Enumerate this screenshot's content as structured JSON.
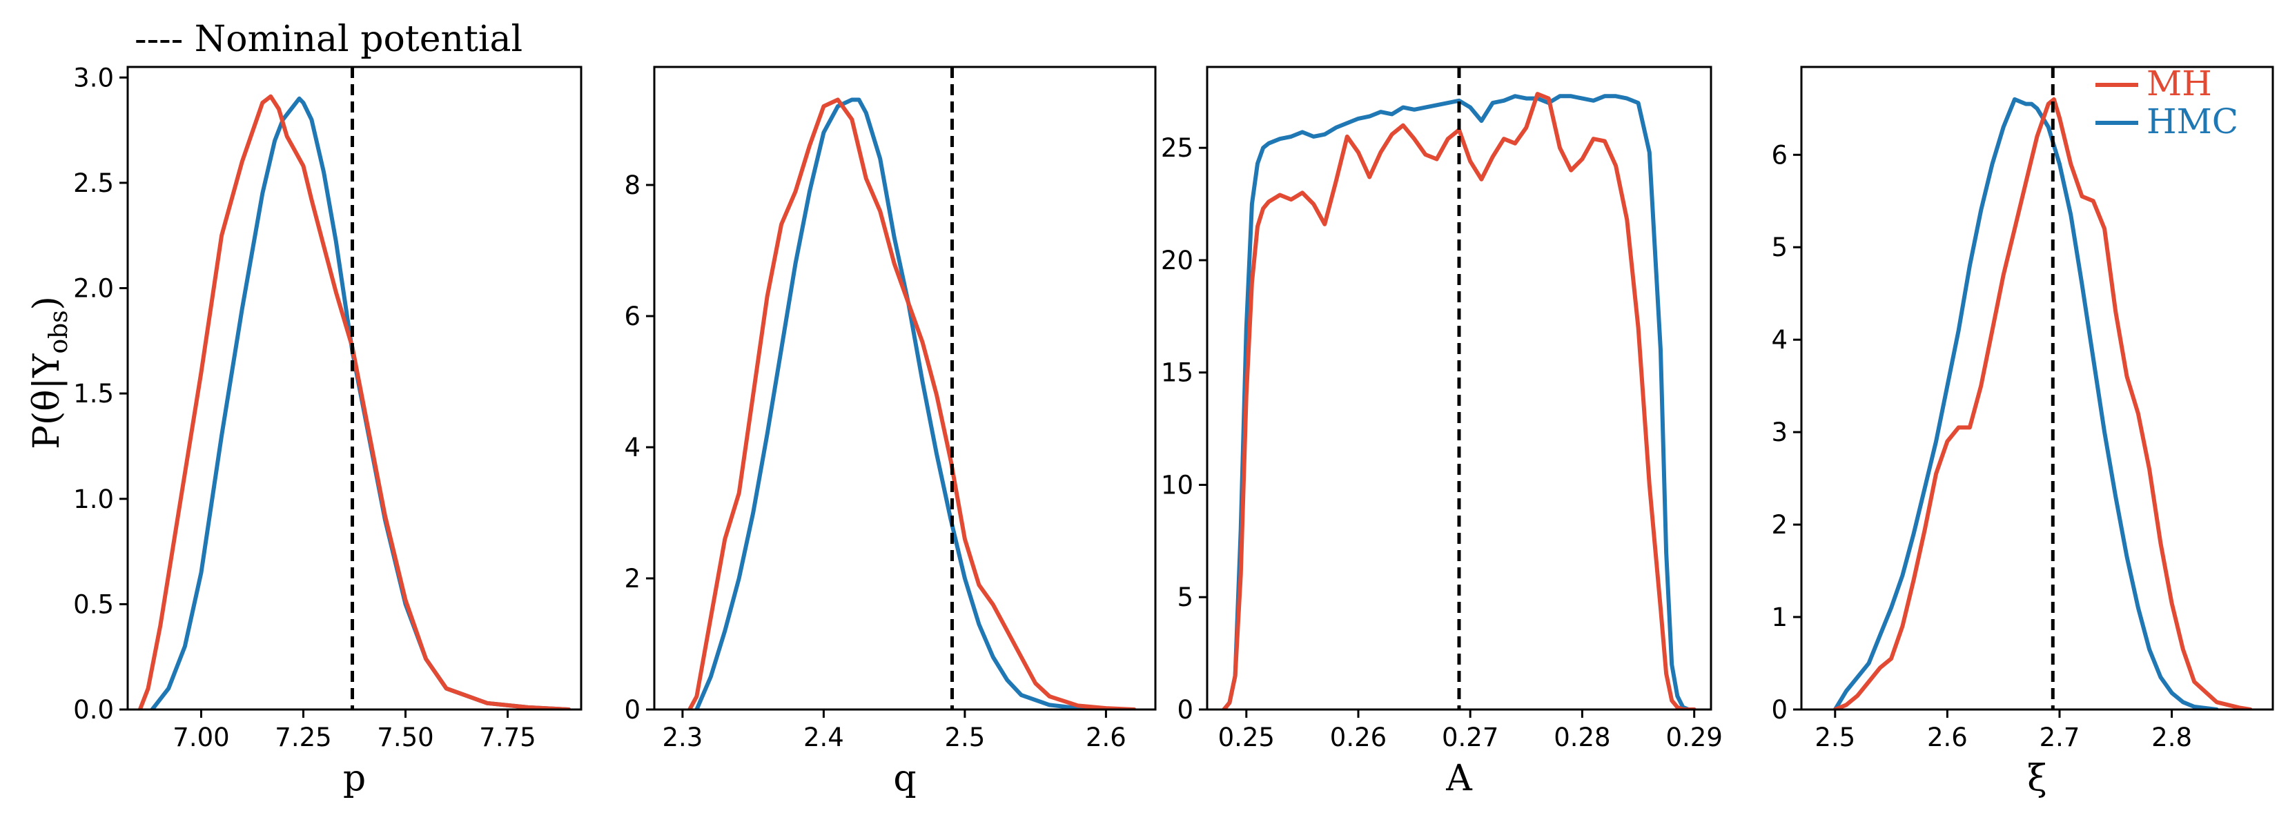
{
  "figure": {
    "nominal_note": "---- Nominal potential",
    "ylabel": "P(θ|Y",
    "ylabel_sub": "obs",
    "ylabel_close": ")"
  },
  "legend": {
    "items": [
      {
        "label": "MH",
        "color": "#e24a33"
      },
      {
        "label": "HMC",
        "color": "#1f77b4"
      }
    ]
  },
  "colors": {
    "MH": "#e24a33",
    "HMC": "#1f77b4",
    "nominal": "#000000"
  },
  "chart_data": [
    {
      "type": "line",
      "xlabel": "p",
      "xlim": [
        6.82,
        7.93
      ],
      "ylim": [
        0,
        3.05
      ],
      "xticks": [
        7.0,
        7.25,
        7.5,
        7.75
      ],
      "xtick_labels": [
        "7.00",
        "7.25",
        "7.50",
        "7.75"
      ],
      "yticks": [
        0,
        0.5,
        1.0,
        1.5,
        2.0,
        2.5,
        3.0
      ],
      "ytick_labels": [
        "0.0",
        "0.5",
        "1.0",
        "1.5",
        "2.0",
        "2.5",
        "3.0"
      ],
      "nominal": 7.37,
      "series": [
        {
          "name": "MH",
          "x": [
            6.85,
            6.87,
            6.9,
            6.95,
            7.0,
            7.05,
            7.1,
            7.15,
            7.17,
            7.19,
            7.21,
            7.23,
            7.25,
            7.27,
            7.3,
            7.33,
            7.37,
            7.4,
            7.45,
            7.5,
            7.55,
            7.6,
            7.7,
            7.8,
            7.9
          ],
          "y": [
            0.0,
            0.1,
            0.4,
            1.0,
            1.6,
            2.25,
            2.6,
            2.88,
            2.91,
            2.85,
            2.72,
            2.65,
            2.58,
            2.42,
            2.2,
            1.98,
            1.72,
            1.42,
            0.92,
            0.52,
            0.24,
            0.1,
            0.03,
            0.01,
            0.0
          ]
        },
        {
          "name": "HMC",
          "x": [
            6.88,
            6.92,
            6.96,
            7.0,
            7.05,
            7.1,
            7.15,
            7.18,
            7.2,
            7.22,
            7.24,
            7.25,
            7.27,
            7.3,
            7.33,
            7.37,
            7.4,
            7.45,
            7.5,
            7.55,
            7.6,
            7.7,
            7.8,
            7.9
          ],
          "y": [
            0.0,
            0.1,
            0.3,
            0.65,
            1.3,
            1.9,
            2.45,
            2.7,
            2.8,
            2.85,
            2.9,
            2.88,
            2.8,
            2.55,
            2.22,
            1.7,
            1.4,
            0.9,
            0.5,
            0.24,
            0.1,
            0.03,
            0.01,
            0.0
          ]
        }
      ]
    },
    {
      "type": "line",
      "xlabel": "q",
      "xlim": [
        2.28,
        2.635
      ],
      "ylim": [
        0,
        9.8
      ],
      "xticks": [
        2.3,
        2.4,
        2.5,
        2.6
      ],
      "xtick_labels": [
        "2.3",
        "2.4",
        "2.5",
        "2.6"
      ],
      "yticks": [
        0,
        2,
        4,
        6,
        8
      ],
      "ytick_labels": [
        "0",
        "2",
        "4",
        "6",
        "8"
      ],
      "nominal": 2.491,
      "series": [
        {
          "name": "MH",
          "x": [
            2.305,
            2.31,
            2.32,
            2.33,
            2.34,
            2.35,
            2.36,
            2.37,
            2.38,
            2.39,
            2.4,
            2.41,
            2.42,
            2.43,
            2.44,
            2.45,
            2.46,
            2.47,
            2.48,
            2.49,
            2.5,
            2.51,
            2.52,
            2.53,
            2.54,
            2.55,
            2.56,
            2.58,
            2.6,
            2.62
          ],
          "y": [
            0.0,
            0.2,
            1.4,
            2.6,
            3.3,
            4.8,
            6.3,
            7.4,
            7.9,
            8.6,
            9.2,
            9.3,
            9.0,
            8.1,
            7.6,
            6.8,
            6.2,
            5.6,
            4.8,
            3.8,
            2.6,
            1.9,
            1.6,
            1.2,
            0.8,
            0.4,
            0.2,
            0.06,
            0.02,
            0.0
          ]
        },
        {
          "name": "HMC",
          "x": [
            2.31,
            2.32,
            2.33,
            2.34,
            2.35,
            2.36,
            2.37,
            2.38,
            2.39,
            2.4,
            2.41,
            2.42,
            2.425,
            2.43,
            2.44,
            2.45,
            2.46,
            2.47,
            2.48,
            2.49,
            2.5,
            2.51,
            2.52,
            2.53,
            2.54,
            2.56,
            2.58,
            2.6
          ],
          "y": [
            0.0,
            0.5,
            1.2,
            2.0,
            3.0,
            4.2,
            5.5,
            6.8,
            7.9,
            8.8,
            9.2,
            9.3,
            9.3,
            9.1,
            8.4,
            7.2,
            6.2,
            5.0,
            3.9,
            2.9,
            2.0,
            1.3,
            0.8,
            0.45,
            0.22,
            0.07,
            0.02,
            0.0
          ]
        }
      ]
    },
    {
      "type": "line",
      "xlabel": "A",
      "xlim": [
        0.2465,
        0.2915
      ],
      "ylim": [
        0,
        28.6
      ],
      "xticks": [
        0.25,
        0.26,
        0.27,
        0.28,
        0.29
      ],
      "xtick_labels": [
        "0.25",
        "0.26",
        "0.27",
        "0.28",
        "0.29"
      ],
      "yticks": [
        0,
        5,
        10,
        15,
        20,
        25
      ],
      "ytick_labels": [
        "0",
        "5",
        "10",
        "15",
        "20",
        "25"
      ],
      "nominal": 0.269,
      "series": [
        {
          "name": "MH",
          "x": [
            0.248,
            0.2485,
            0.249,
            0.2495,
            0.25,
            0.2505,
            0.251,
            0.2515,
            0.252,
            0.253,
            0.254,
            0.255,
            0.256,
            0.257,
            0.258,
            0.259,
            0.26,
            0.261,
            0.262,
            0.263,
            0.264,
            0.265,
            0.266,
            0.267,
            0.268,
            0.269,
            0.27,
            0.271,
            0.272,
            0.273,
            0.274,
            0.275,
            0.276,
            0.277,
            0.278,
            0.279,
            0.28,
            0.281,
            0.282,
            0.283,
            0.284,
            0.285,
            0.286,
            0.287,
            0.2875,
            0.288,
            0.2885,
            0.289,
            0.2895,
            0.29
          ],
          "y": [
            0,
            0.3,
            1.5,
            6,
            14,
            19,
            21.5,
            22.3,
            22.6,
            22.9,
            22.7,
            23.0,
            22.5,
            21.6,
            23.5,
            25.5,
            24.8,
            23.7,
            24.8,
            25.6,
            26.0,
            25.4,
            24.7,
            24.5,
            25.4,
            25.8,
            24.4,
            23.6,
            24.6,
            25.4,
            25.2,
            25.9,
            27.4,
            27.2,
            25.0,
            24.0,
            24.5,
            25.4,
            25.3,
            24.2,
            21.8,
            17.0,
            10.0,
            4.5,
            1.6,
            0.4,
            0.1,
            0,
            0,
            0
          ]
        },
        {
          "name": "HMC",
          "x": [
            0.248,
            0.2485,
            0.249,
            0.2495,
            0.25,
            0.2505,
            0.251,
            0.2515,
            0.252,
            0.253,
            0.254,
            0.255,
            0.256,
            0.257,
            0.258,
            0.259,
            0.26,
            0.261,
            0.262,
            0.263,
            0.264,
            0.265,
            0.266,
            0.267,
            0.268,
            0.269,
            0.27,
            0.271,
            0.272,
            0.273,
            0.274,
            0.275,
            0.276,
            0.277,
            0.278,
            0.279,
            0.28,
            0.281,
            0.282,
            0.283,
            0.284,
            0.285,
            0.286,
            0.287,
            0.2875,
            0.288,
            0.2885,
            0.289,
            0.2895,
            0.29
          ],
          "y": [
            0,
            0.3,
            1.5,
            8,
            17,
            22.5,
            24.3,
            25.0,
            25.2,
            25.4,
            25.5,
            25.7,
            25.5,
            25.6,
            25.9,
            26.1,
            26.3,
            26.4,
            26.6,
            26.5,
            26.8,
            26.7,
            26.8,
            26.9,
            27.0,
            27.1,
            26.8,
            26.2,
            27.0,
            27.1,
            27.3,
            27.2,
            27.2,
            27.0,
            27.3,
            27.3,
            27.2,
            27.1,
            27.3,
            27.3,
            27.2,
            27.0,
            24.8,
            16.0,
            7.0,
            2.0,
            0.6,
            0.1,
            0,
            0
          ]
        }
      ]
    },
    {
      "type": "line",
      "xlabel": "ξ",
      "xlim": [
        2.47,
        2.89
      ],
      "ylim": [
        0,
        6.95
      ],
      "xticks": [
        2.5,
        2.6,
        2.7,
        2.8
      ],
      "xtick_labels": [
        "2.5",
        "2.6",
        "2.7",
        "2.8"
      ],
      "yticks": [
        0,
        1,
        2,
        3,
        4,
        5,
        6
      ],
      "ytick_labels": [
        "0",
        "1",
        "2",
        "3",
        "4",
        "5",
        "6"
      ],
      "nominal": 2.694,
      "series": [
        {
          "name": "MH",
          "x": [
            2.5,
            2.51,
            2.52,
            2.53,
            2.54,
            2.55,
            2.56,
            2.57,
            2.58,
            2.59,
            2.6,
            2.61,
            2.62,
            2.63,
            2.64,
            2.65,
            2.66,
            2.67,
            2.68,
            2.69,
            2.695,
            2.7,
            2.71,
            2.72,
            2.73,
            2.74,
            2.75,
            2.76,
            2.77,
            2.78,
            2.79,
            2.8,
            2.81,
            2.82,
            2.84,
            2.86,
            2.87
          ],
          "y": [
            0.0,
            0.05,
            0.15,
            0.3,
            0.45,
            0.55,
            0.9,
            1.4,
            1.95,
            2.55,
            2.9,
            3.05,
            3.05,
            3.5,
            4.1,
            4.7,
            5.2,
            5.7,
            6.2,
            6.55,
            6.6,
            6.4,
            5.9,
            5.55,
            5.5,
            5.2,
            4.3,
            3.6,
            3.2,
            2.6,
            1.8,
            1.15,
            0.65,
            0.3,
            0.08,
            0.02,
            0.0
          ]
        },
        {
          "name": "HMC",
          "x": [
            2.5,
            2.51,
            2.52,
            2.53,
            2.54,
            2.55,
            2.56,
            2.57,
            2.58,
            2.59,
            2.6,
            2.61,
            2.62,
            2.63,
            2.64,
            2.65,
            2.66,
            2.67,
            2.675,
            2.68,
            2.69,
            2.7,
            2.71,
            2.72,
            2.73,
            2.74,
            2.75,
            2.76,
            2.77,
            2.78,
            2.79,
            2.8,
            2.81,
            2.82,
            2.84
          ],
          "y": [
            0.0,
            0.2,
            0.35,
            0.5,
            0.8,
            1.1,
            1.45,
            1.9,
            2.4,
            2.9,
            3.5,
            4.1,
            4.8,
            5.4,
            5.9,
            6.3,
            6.6,
            6.55,
            6.55,
            6.5,
            6.3,
            5.9,
            5.35,
            4.6,
            3.8,
            3.0,
            2.3,
            1.65,
            1.1,
            0.65,
            0.35,
            0.18,
            0.08,
            0.03,
            0.0
          ]
        }
      ]
    }
  ]
}
